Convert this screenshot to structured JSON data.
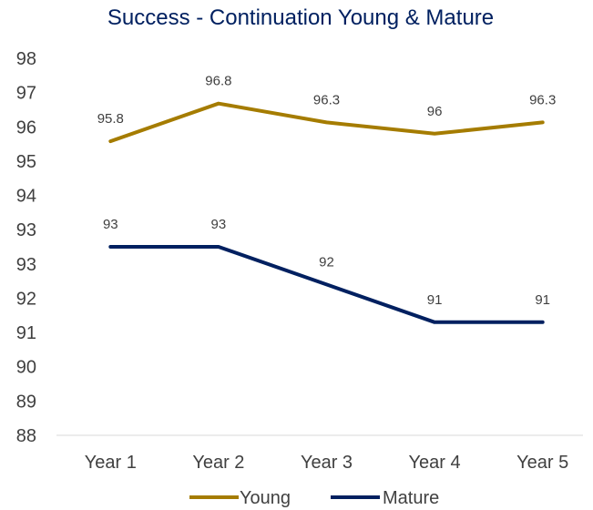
{
  "chart_data": {
    "type": "line",
    "title": "Success - Continuation Young & Mature",
    "categories": [
      "Year 1",
      "Year 2",
      "Year 3",
      "Year 4",
      "Year 5"
    ],
    "series": [
      {
        "name": "Young",
        "color": "#A57C00",
        "values": [
          95.8,
          96.8,
          96.3,
          96,
          96.3
        ],
        "labels": [
          "95.8",
          "96.8",
          "96.3",
          "96",
          "96.3"
        ]
      },
      {
        "name": "Mature",
        "color": "#002060",
        "values": [
          93,
          93,
          92,
          91,
          91
        ],
        "labels": [
          "93",
          "93",
          "92",
          "91",
          "91"
        ]
      }
    ],
    "y_ticks": [
      "88",
      "89",
      "90",
      "91",
      "92",
      "93",
      "93",
      "94",
      "95",
      "96",
      "97",
      "98"
    ],
    "ylim": [
      88,
      98
    ],
    "grid": false,
    "legend": "bottom",
    "xlabel": "",
    "ylabel": ""
  }
}
